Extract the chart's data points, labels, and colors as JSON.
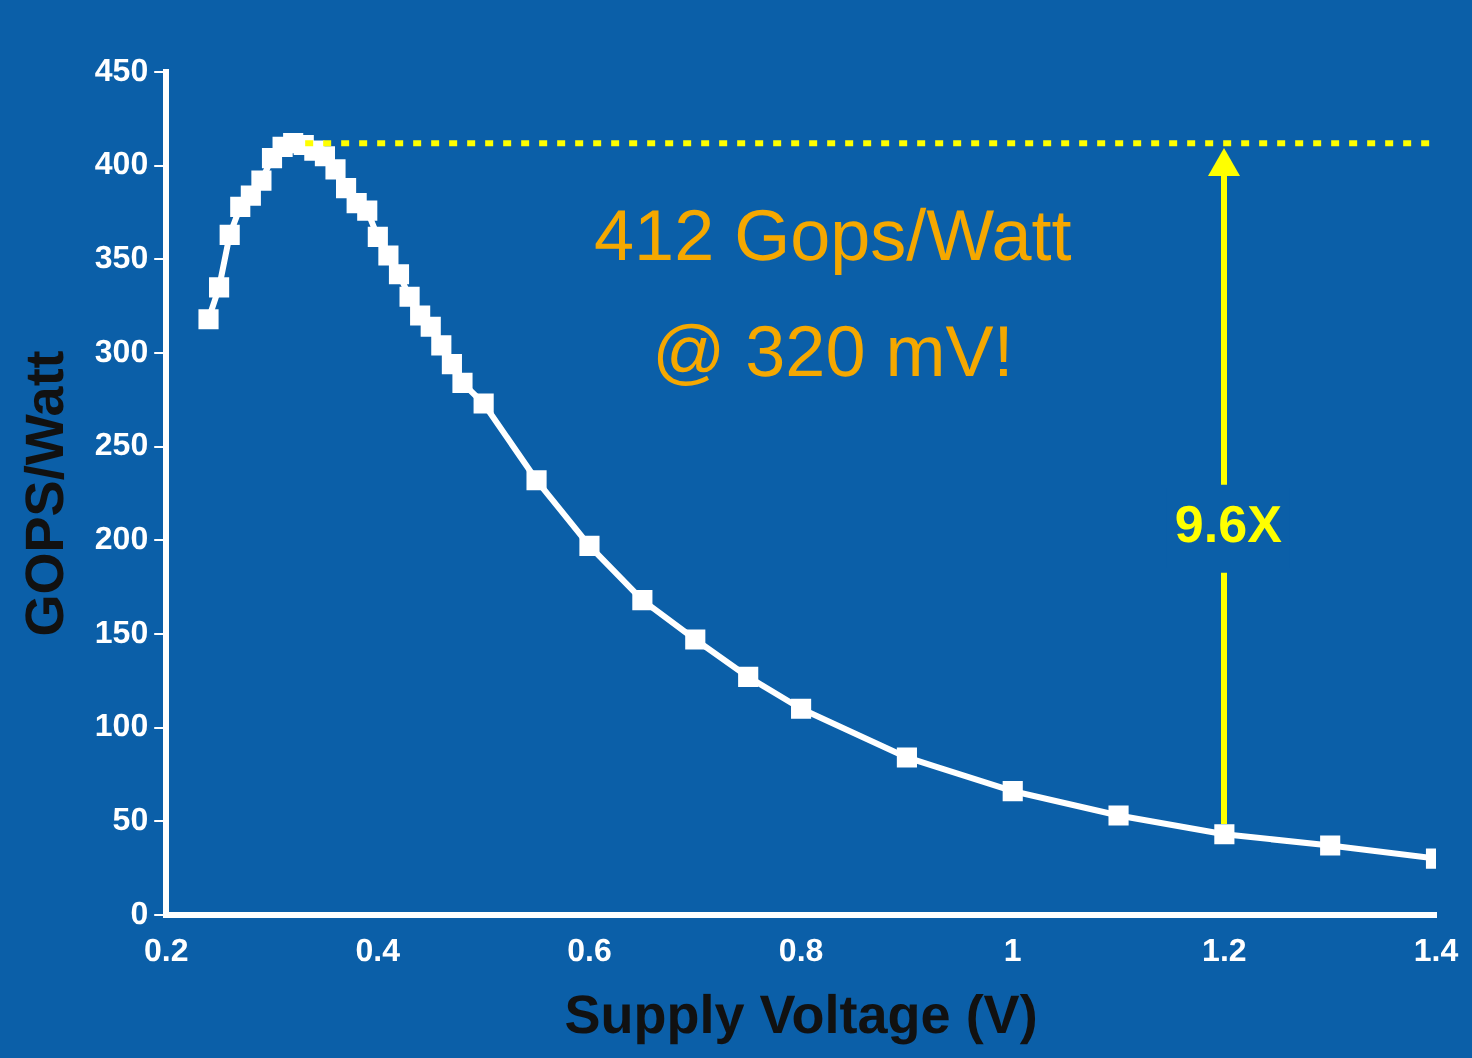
{
  "chart_data": {
    "type": "line",
    "xlabel": "Supply Voltage (V)",
    "ylabel": "GOPS/Watt",
    "x": [
      0.24,
      0.25,
      0.26,
      0.27,
      0.28,
      0.29,
      0.3,
      0.31,
      0.32,
      0.33,
      0.34,
      0.35,
      0.36,
      0.37,
      0.38,
      0.39,
      0.4,
      0.41,
      0.42,
      0.43,
      0.44,
      0.45,
      0.46,
      0.47,
      0.48,
      0.5,
      0.55,
      0.6,
      0.65,
      0.7,
      0.75,
      0.8,
      0.9,
      1.0,
      1.1,
      1.2,
      1.3,
      1.4
    ],
    "series": [
      {
        "color": "#ffffff",
        "values": [
          318,
          335,
          363,
          378,
          384,
          392,
          404,
          410,
          412,
          411,
          408,
          405,
          398,
          388,
          380,
          376,
          362,
          352,
          342,
          330,
          320,
          314,
          304,
          294,
          284,
          273,
          232,
          197,
          168,
          147,
          127,
          110,
          84,
          66,
          53,
          43,
          37,
          30
        ]
      }
    ],
    "xlim": [
      0.2,
      1.4
    ],
    "xticks": [
      {
        "value": 0.2,
        "label": "0.2"
      },
      {
        "value": 0.4,
        "label": "0.4"
      },
      {
        "value": 0.6,
        "label": "0.6"
      },
      {
        "value": 0.8,
        "label": "0.8"
      },
      {
        "value": 1,
        "label": "1"
      },
      {
        "value": 1.2,
        "label": "1.2"
      },
      {
        "value": 1.4,
        "label": "1.4"
      }
    ],
    "ylim": [
      0,
      450
    ],
    "yticks": [
      0,
      50,
      100,
      150,
      200,
      250,
      300,
      350,
      400,
      450
    ],
    "ref_lines": [
      {
        "axis": "y",
        "value": 412,
        "color": "#ffff00",
        "line_style": "dotted"
      }
    ],
    "annotations": [
      "412 Gops/Watt",
      "@ 320 mV!",
      {
        "text": "9.6X",
        "x": 1.2,
        "y": 43
      }
    ],
    "marker": "square",
    "grid": false,
    "legend": false
  }
}
